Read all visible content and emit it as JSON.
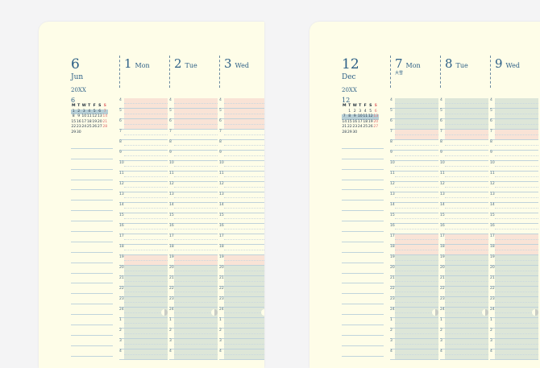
{
  "pages": [
    {
      "month_num": "6",
      "month_name": "Jun",
      "year": "20XX",
      "mini_calendar": {
        "month_num": "6",
        "weekday_header": [
          "M",
          "T",
          "W",
          "T",
          "F",
          "S",
          "S"
        ],
        "rows": [
          [
            "1",
            "2",
            "3",
            "4",
            "5",
            "6",
            "7"
          ],
          [
            "8",
            "9",
            "10",
            "11",
            "12",
            "13",
            "14"
          ],
          [
            "15",
            "16",
            "17",
            "18",
            "19",
            "20",
            "21"
          ],
          [
            "22",
            "23",
            "24",
            "25",
            "26",
            "27",
            "28"
          ],
          [
            "29",
            "30",
            "",
            "",
            "",
            "",
            ""
          ]
        ],
        "highlight_row": 0
      },
      "days": [
        {
          "num": "1",
          "name": "Mon",
          "holiday": ""
        },
        {
          "num": "2",
          "name": "Tue",
          "holiday": ""
        },
        {
          "num": "3",
          "name": "Wed",
          "holiday": ""
        }
      ],
      "hour_labels": [
        "4",
        "5",
        "6",
        "7",
        "8",
        "9",
        "10",
        "11",
        "12",
        "13",
        "14",
        "15",
        "16",
        "17",
        "18",
        "19",
        "20",
        "21",
        "22",
        "23",
        "24",
        "1",
        "2",
        "3",
        "4"
      ],
      "fill_pattern": [
        "pink",
        "pink",
        "pink",
        "none",
        "none",
        "none",
        "none",
        "none",
        "none",
        "none",
        "none",
        "none",
        "none",
        "none",
        "none",
        "pink",
        "green",
        "green",
        "green",
        "green",
        "green",
        "green",
        "green",
        "green",
        "green"
      ],
      "moon_slot": 20
    },
    {
      "month_num": "12",
      "month_name": "Dec",
      "year": "20XX",
      "mini_calendar": {
        "month_num": "12",
        "weekday_header": [
          "M",
          "T",
          "W",
          "T",
          "F",
          "S",
          "S"
        ],
        "rows": [
          [
            "",
            "1",
            "2",
            "3",
            "4",
            "5",
            "6"
          ],
          [
            "7",
            "8",
            "9",
            "10",
            "11",
            "12",
            "13"
          ],
          [
            "14",
            "15",
            "16",
            "17",
            "18",
            "19",
            "20"
          ],
          [
            "21",
            "22",
            "23",
            "24",
            "25",
            "26",
            "27"
          ],
          [
            "28",
            "29",
            "30",
            "",
            "",
            "",
            ""
          ]
        ],
        "highlight_row": 1
      },
      "days": [
        {
          "num": "7",
          "name": "Mon",
          "holiday": "大雪"
        },
        {
          "num": "8",
          "name": "Tue",
          "holiday": ""
        },
        {
          "num": "9",
          "name": "Wed",
          "holiday": ""
        }
      ],
      "hour_labels": [
        "4",
        "5",
        "6",
        "7",
        "8",
        "9",
        "10",
        "11",
        "12",
        "13",
        "14",
        "15",
        "16",
        "17",
        "18",
        "19",
        "20",
        "21",
        "22",
        "23",
        "24",
        "1",
        "2",
        "3",
        "4"
      ],
      "fill_pattern": [
        "green",
        "green",
        "green",
        "pink",
        "none",
        "none",
        "none",
        "none",
        "none",
        "none",
        "none",
        "none",
        "none",
        "pink",
        "pink",
        "green",
        "green",
        "green",
        "green",
        "green",
        "green",
        "green",
        "green",
        "green",
        "green"
      ],
      "moon_slot": 20
    }
  ]
}
